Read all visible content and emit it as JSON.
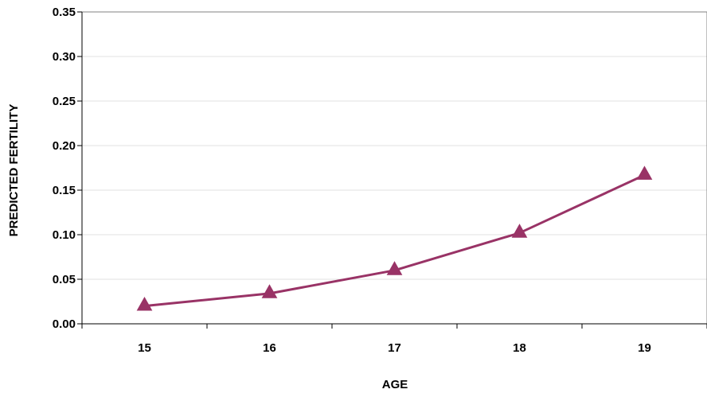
{
  "chart_data": {
    "type": "line",
    "xlabel": "AGE",
    "ylabel": "PREDICTED FERTILITY",
    "categories": [
      "15",
      "16",
      "17",
      "18",
      "19"
    ],
    "y_ticks": [
      "0.00",
      "0.05",
      "0.10",
      "0.15",
      "0.20",
      "0.25",
      "0.30",
      "0.35"
    ],
    "ylim": [
      0,
      0.35
    ],
    "grid": "horizontal",
    "legend": "none",
    "series": [
      {
        "values": [
          0.02,
          0.034,
          0.06,
          0.102,
          0.167
        ],
        "color": "#993366",
        "marker": "triangle"
      }
    ]
  }
}
